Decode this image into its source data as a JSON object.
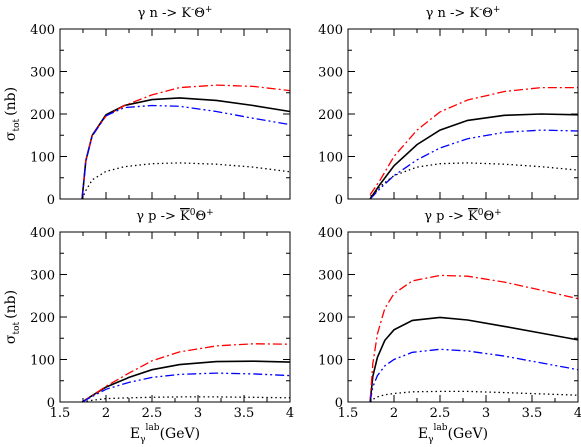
{
  "chart_data": [
    {
      "type": "line",
      "title_parts": [
        "γ n -> K",
        "-",
        "Θ",
        "+"
      ],
      "ylabel": "σ",
      "ylabel_sub": "tot",
      "ylabel_unit": "(nb)",
      "xlim": [
        1.5,
        4
      ],
      "ylim": [
        0,
        400
      ],
      "xticks": [
        1.5,
        2,
        2.5,
        3,
        3.5,
        4
      ],
      "xtick_labels": [
        "",
        "",
        "",
        "",
        "",
        ""
      ],
      "yticks": [
        0,
        100,
        200,
        300,
        400
      ],
      "ytick_labels": [
        "0",
        "100",
        "200",
        "300",
        "400"
      ],
      "series": [
        {
          "color": "#000000",
          "dash": "solid",
          "x": [
            1.74,
            1.78,
            1.85,
            2.0,
            2.2,
            2.5,
            2.8,
            3.2,
            3.6,
            4.0
          ],
          "y": [
            0,
            90,
            150,
            198,
            220,
            234,
            238,
            232,
            220,
            206
          ]
        },
        {
          "color": "#ff0000",
          "dash": "dashdot",
          "x": [
            1.74,
            1.78,
            1.85,
            2.0,
            2.2,
            2.5,
            2.8,
            3.2,
            3.6,
            4.0
          ],
          "y": [
            0,
            90,
            150,
            195,
            220,
            245,
            262,
            268,
            265,
            255
          ]
        },
        {
          "color": "#0000ff",
          "dash": "dashdotdot",
          "x": [
            1.74,
            1.78,
            1.85,
            2.0,
            2.2,
            2.5,
            2.8,
            3.2,
            3.6,
            4.0
          ],
          "y": [
            0,
            88,
            148,
            196,
            215,
            220,
            218,
            206,
            190,
            175
          ]
        },
        {
          "color": "#000000",
          "dash": "dotted",
          "x": [
            1.74,
            1.78,
            1.85,
            2.0,
            2.2,
            2.5,
            2.8,
            3.2,
            3.6,
            4.0
          ],
          "y": [
            0,
            20,
            45,
            65,
            76,
            83,
            85,
            82,
            75,
            64
          ]
        }
      ]
    },
    {
      "type": "line",
      "title_parts": [
        "γ n -> K",
        "-",
        "Θ",
        "+"
      ],
      "xlim": [
        1.5,
        4
      ],
      "ylim": [
        0,
        400
      ],
      "xticks": [
        1.5,
        2,
        2.5,
        3,
        3.5,
        4
      ],
      "xtick_labels": [
        "",
        "",
        "",
        "",
        "",
        ""
      ],
      "yticks": [
        0,
        100,
        200,
        300,
        400
      ],
      "ytick_labels": [
        "0",
        "100",
        "200",
        "300",
        "400"
      ],
      "series": [
        {
          "color": "#000000",
          "dash": "solid",
          "x": [
            1.74,
            1.85,
            2.0,
            2.25,
            2.5,
            2.8,
            3.2,
            3.6,
            4.0
          ],
          "y": [
            0,
            35,
            78,
            128,
            162,
            185,
            197,
            200,
            198
          ]
        },
        {
          "color": "#ff0000",
          "dash": "dashdot",
          "x": [
            1.74,
            1.85,
            2.0,
            2.25,
            2.5,
            2.8,
            3.2,
            3.6,
            4.0
          ],
          "y": [
            10,
            45,
            100,
            162,
            205,
            233,
            253,
            262,
            262
          ]
        },
        {
          "color": "#0000ff",
          "dash": "dashdotdot",
          "x": [
            1.74,
            1.85,
            2.0,
            2.25,
            2.5,
            2.8,
            3.2,
            3.6,
            4.0
          ],
          "y": [
            0,
            25,
            55,
            92,
            120,
            142,
            157,
            162,
            160
          ]
        },
        {
          "color": "#000000",
          "dash": "dotted",
          "x": [
            1.74,
            1.85,
            2.0,
            2.25,
            2.5,
            2.8,
            3.2,
            3.6,
            4.0
          ],
          "y": [
            0,
            30,
            55,
            75,
            83,
            85,
            82,
            76,
            68
          ]
        }
      ]
    },
    {
      "type": "line",
      "title_parts": [
        "γ p -> ",
        "K",
        "0",
        "Θ",
        "+"
      ],
      "title_overbar": true,
      "ylabel": "σ",
      "ylabel_sub": "tot",
      "ylabel_unit": "(nb)",
      "xlabel": "E",
      "xlabel_sub": "γ",
      "xlabel_sup": "lab",
      "xlabel_unit": "(GeV)",
      "xlim": [
        1.5,
        4
      ],
      "ylim": [
        0,
        400
      ],
      "xticks": [
        1.5,
        2,
        2.5,
        3,
        3.5,
        4
      ],
      "xtick_labels": [
        "1.5",
        "2",
        "2.5",
        "3",
        "3.5",
        "4"
      ],
      "yticks": [
        0,
        100,
        200,
        300,
        400
      ],
      "ytick_labels": [
        "0",
        "100",
        "200",
        "300",
        "400"
      ],
      "series": [
        {
          "color": "#000000",
          "dash": "solid",
          "x": [
            1.74,
            1.85,
            2.0,
            2.25,
            2.5,
            2.8,
            3.2,
            3.6,
            4.0
          ],
          "y": [
            0,
            15,
            35,
            58,
            76,
            88,
            95,
            96,
            94
          ]
        },
        {
          "color": "#ff0000",
          "dash": "dashdot",
          "x": [
            1.74,
            1.85,
            2.0,
            2.25,
            2.5,
            2.8,
            3.2,
            3.6,
            4.0
          ],
          "y": [
            0,
            15,
            37,
            68,
            97,
            118,
            132,
            137,
            136
          ]
        },
        {
          "color": "#0000ff",
          "dash": "dashdotdot",
          "x": [
            1.74,
            1.85,
            2.0,
            2.25,
            2.5,
            2.8,
            3.2,
            3.6,
            4.0
          ],
          "y": [
            0,
            13,
            30,
            46,
            58,
            65,
            68,
            66,
            62
          ]
        },
        {
          "color": "#000000",
          "dash": "dotted",
          "x": [
            1.74,
            1.85,
            2.0,
            2.25,
            2.5,
            2.8,
            3.2,
            3.6,
            4.0
          ],
          "y": [
            0,
            4,
            8,
            10,
            11,
            12,
            12,
            11,
            10
          ]
        }
      ]
    },
    {
      "type": "line",
      "title_parts": [
        "γ p -> ",
        "K",
        "0",
        "Θ",
        "+"
      ],
      "title_overbar": true,
      "xlabel": "E",
      "xlabel_sub": "γ",
      "xlabel_sup": "lab",
      "xlabel_unit": "(GeV)",
      "xlim": [
        1.5,
        4
      ],
      "ylim": [
        0,
        400
      ],
      "xticks": [
        1.5,
        2,
        2.5,
        3,
        3.5,
        4
      ],
      "xtick_labels": [
        "1.5",
        "2",
        "2.5",
        "3",
        "3.5",
        "4"
      ],
      "yticks": [
        0,
        100,
        200,
        300,
        400
      ],
      "ytick_labels": [
        "0",
        "100",
        "200",
        "300",
        "400"
      ],
      "series": [
        {
          "color": "#000000",
          "dash": "solid",
          "x": [
            1.74,
            1.77,
            1.82,
            1.9,
            2.0,
            2.2,
            2.5,
            2.8,
            3.2,
            3.6,
            4.0
          ],
          "y": [
            0,
            60,
            105,
            145,
            170,
            192,
            199,
            193,
            178,
            162,
            146
          ]
        },
        {
          "color": "#ff0000",
          "dash": "dashdot",
          "x": [
            1.74,
            1.77,
            1.82,
            1.9,
            2.0,
            2.2,
            2.5,
            2.8,
            3.2,
            3.6,
            4.0
          ],
          "y": [
            0,
            90,
            160,
            220,
            255,
            285,
            298,
            296,
            282,
            263,
            243
          ]
        },
        {
          "color": "#0000ff",
          "dash": "dashdotdot",
          "x": [
            1.74,
            1.77,
            1.82,
            1.9,
            2.0,
            2.2,
            2.5,
            2.8,
            3.2,
            3.6,
            4.0
          ],
          "y": [
            0,
            35,
            62,
            85,
            100,
            117,
            124,
            120,
            108,
            92,
            76
          ]
        },
        {
          "color": "#000000",
          "dash": "dotted",
          "x": [
            1.74,
            1.77,
            1.82,
            1.9,
            2.0,
            2.2,
            2.5,
            2.8,
            3.2,
            3.6,
            4.0
          ],
          "y": [
            0,
            6,
            12,
            17,
            20,
            24,
            25,
            25,
            22,
            19,
            16
          ]
        }
      ]
    }
  ]
}
